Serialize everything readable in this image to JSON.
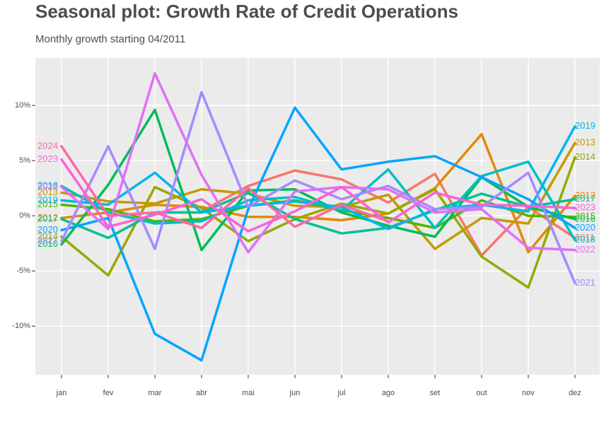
{
  "chart_data": {
    "type": "line",
    "title": "Seasonal plot:  Growth Rate of Credit Operations",
    "subtitle": "Monthly growth starting 04/2011",
    "categories": [
      "jan",
      "fev",
      "mar",
      "abr",
      "mai",
      "jun",
      "jul",
      "ago",
      "set",
      "out",
      "nov",
      "dez"
    ],
    "ylim": [
      -14.4,
      14.3
    ],
    "yticks": [
      {
        "value": -10,
        "label": "-10%"
      },
      {
        "value": -5,
        "label": "-5%"
      },
      {
        "value": 0,
        "label": "0%"
      },
      {
        "value": 5,
        "label": "5%"
      },
      {
        "value": 10,
        "label": "10%"
      }
    ],
    "grid": true,
    "series": [
      {
        "name": "2011",
        "color": "#F8766D",
        "values": [
          null,
          null,
          null,
          0.4,
          2.7,
          4.1,
          3.3,
          1.2,
          3.8,
          -3.6,
          0.8,
          -2.0
        ]
      },
      {
        "name": "2012",
        "color": "#E38900",
        "values": [
          -0.2,
          0.3,
          1.0,
          0.8,
          -0.1,
          -0.1,
          -0.4,
          0.2,
          2.5,
          7.4,
          -3.3,
          1.8
        ]
      },
      {
        "name": "2013",
        "color": "#C49A00",
        "values": [
          2.1,
          1.3,
          1.1,
          2.4,
          2.0,
          0.9,
          0.8,
          1.9,
          -3.0,
          -0.2,
          -0.7,
          6.6
        ]
      },
      {
        "name": "2014",
        "color": "#99A800",
        "values": [
          -1.9,
          -5.4,
          2.6,
          0.7,
          -2.3,
          -0.3,
          1.1,
          0.2,
          2.4,
          -3.7,
          -6.5,
          5.3
        ]
      },
      {
        "name": "2015",
        "color": "#53B400",
        "values": [
          1.0,
          0.6,
          -0.5,
          -0.3,
          0.9,
          1.4,
          0.5,
          -0.2,
          -1.1,
          1.4,
          0.0,
          -0.1
        ]
      },
      {
        "name": "2016",
        "color": "#00BC56",
        "values": [
          -2.6,
          2.8,
          9.6,
          -3.1,
          2.3,
          2.4,
          0.3,
          -0.9,
          -1.9,
          3.5,
          0.8,
          -0.3
        ]
      },
      {
        "name": "2017",
        "color": "#00C094",
        "values": [
          -0.3,
          -2.0,
          0.3,
          0.3,
          2.1,
          -0.3,
          -1.6,
          -1.1,
          0.5,
          2.0,
          0.8,
          1.5
        ]
      },
      {
        "name": "2018",
        "color": "#00BFC4",
        "values": [
          2.7,
          0.3,
          -0.7,
          -0.5,
          1.4,
          1.7,
          0.5,
          4.2,
          -1.1,
          3.6,
          4.9,
          -2.2
        ]
      },
      {
        "name": "2019",
        "color": "#00B6EB",
        "values": [
          1.4,
          1.0,
          3.9,
          0.3,
          0.9,
          1.3,
          0.8,
          -1.2,
          0.6,
          1.0,
          0.4,
          8.1
        ]
      },
      {
        "name": "2020",
        "color": "#06A4FF",
        "values": [
          -1.3,
          -0.2,
          -10.7,
          -13.1,
          0.6,
          9.8,
          4.2,
          4.9,
          5.4,
          3.5,
          1.5,
          -1.1
        ]
      },
      {
        "name": "2021",
        "color": "#A58AFF",
        "values": [
          -2.3,
          6.3,
          -3.0,
          11.2,
          0.8,
          3.2,
          1.5,
          2.7,
          0.6,
          0.8,
          3.9,
          -6.1
        ]
      },
      {
        "name": "2022",
        "color": "#DF70F8",
        "values": [
          2.6,
          -1.2,
          12.9,
          3.7,
          -3.3,
          2.2,
          2.6,
          2.4,
          0.3,
          0.6,
          -2.9,
          -3.1
        ]
      },
      {
        "name": "2023",
        "color": "#FB61D7",
        "values": [
          5.1,
          -1.0,
          0.1,
          1.5,
          -1.4,
          0.4,
          2.6,
          -0.6,
          2.1,
          1.0,
          0.9,
          0.7
        ]
      },
      {
        "name": "2024",
        "color": "#FF66A8",
        "values": [
          6.3,
          0.0,
          0.3,
          -1.1,
          2.5,
          -1.0,
          1.0,
          -0.5,
          null,
          null,
          null,
          null
        ]
      }
    ]
  }
}
